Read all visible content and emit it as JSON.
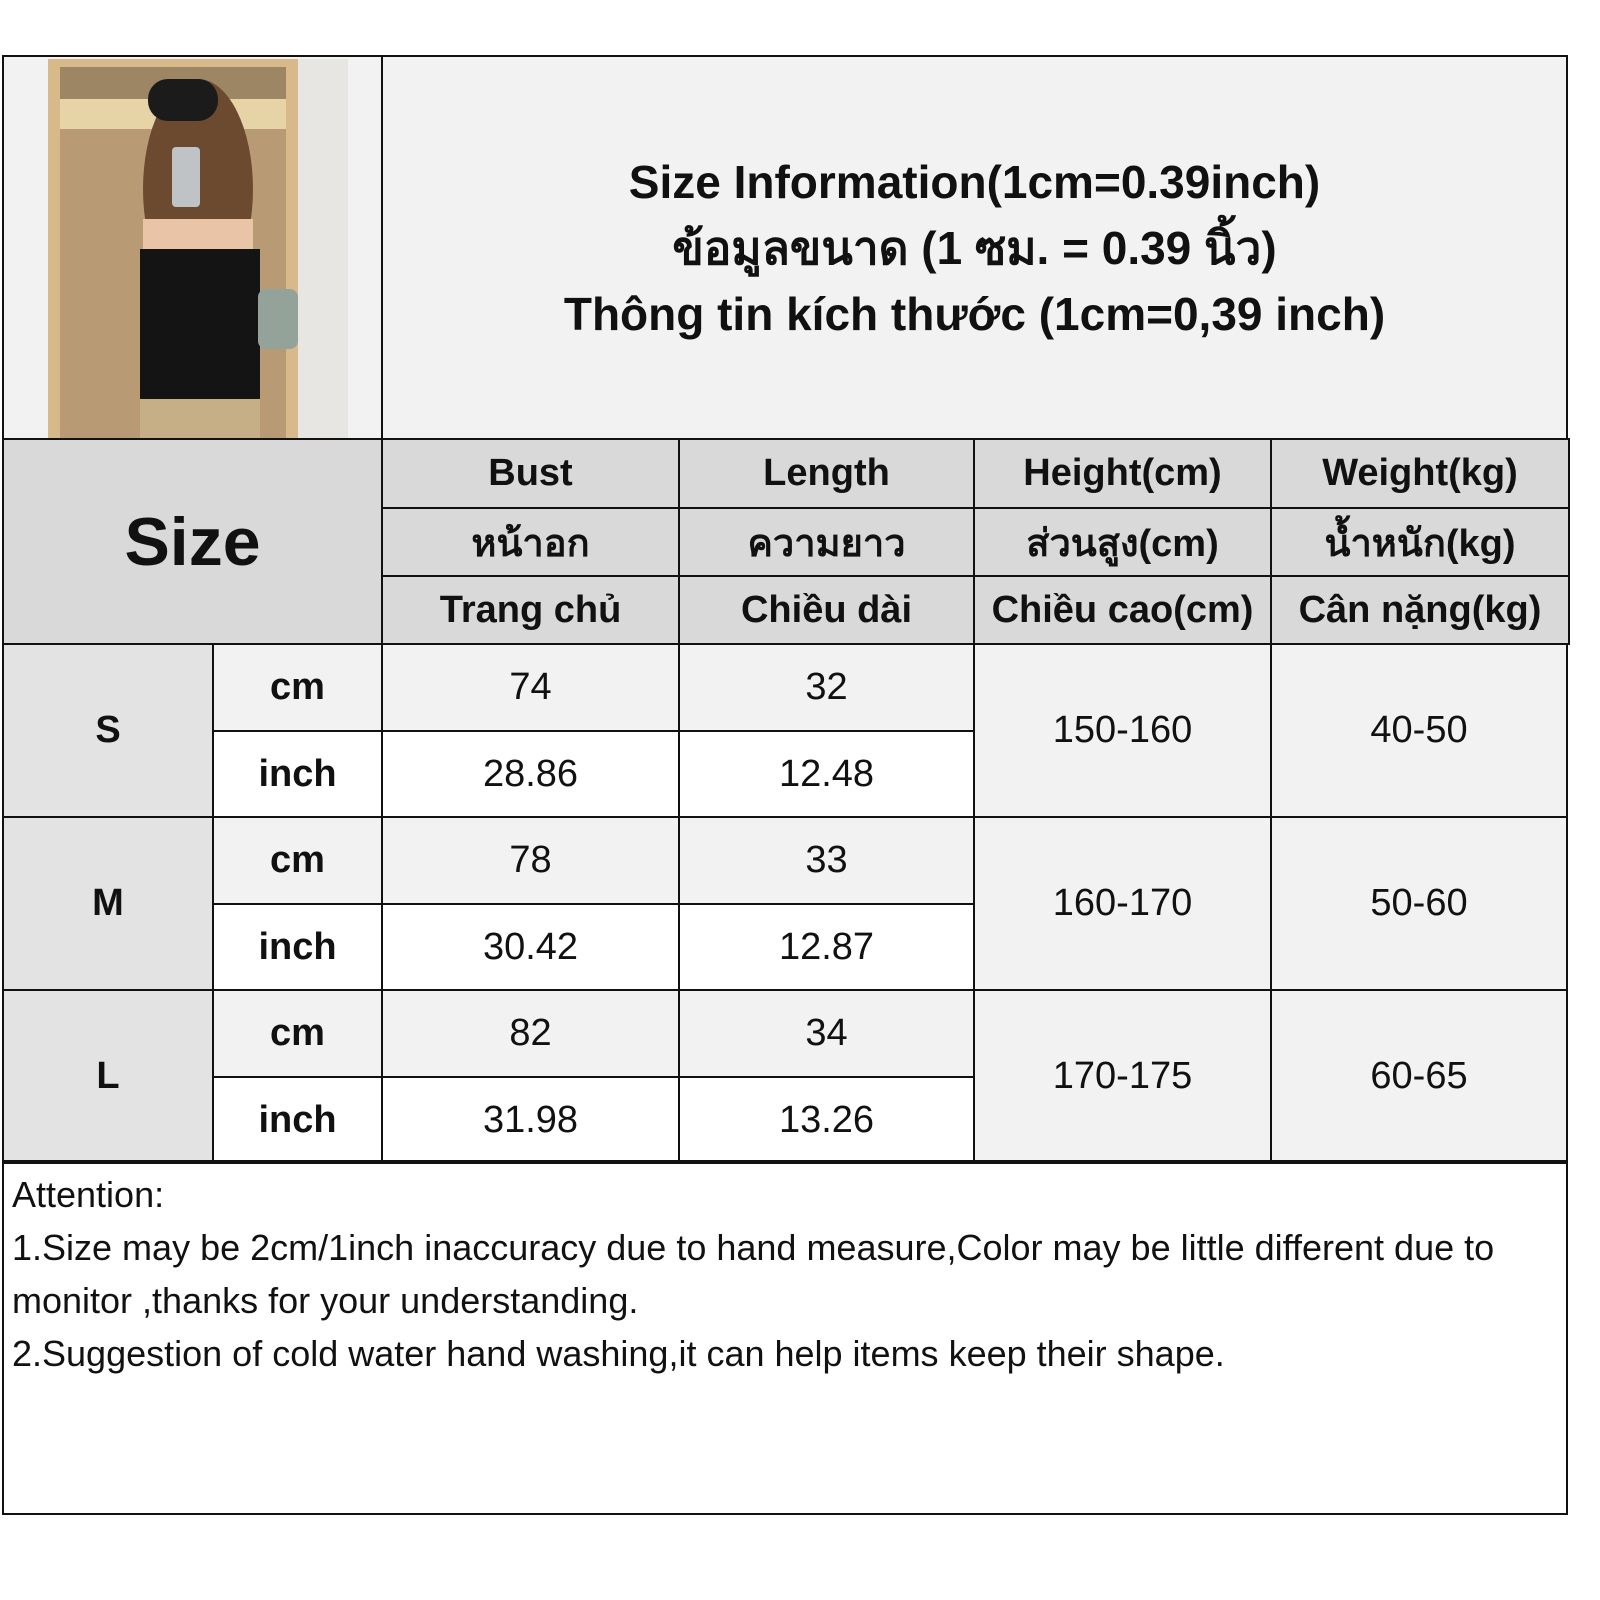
{
  "title": {
    "line1": "Size Information(1cm=0.39inch)",
    "line2": "ข้อมูลขนาด (1 ซม. = 0.39 นิ้ว)",
    "line3": "Thông tin kích thước (1cm=0,39 inch)"
  },
  "size_label": "Size",
  "headers": [
    {
      "en": "Bust",
      "th": "หน้าอก",
      "vi": "Trang chủ"
    },
    {
      "en": "Length",
      "th": "ความยาว",
      "vi": "Chiều dài"
    },
    {
      "en": "Height(cm)",
      "th": "ส่วนสูง(cm)",
      "vi": "Chiều cao(cm)"
    },
    {
      "en": "Weight(kg)",
      "th": "น้ำหนัก(kg)",
      "vi": "Cân nặng(kg)"
    }
  ],
  "rows": [
    {
      "size": "S",
      "cm": {
        "unit": "cm",
        "bust": "74",
        "length": "32"
      },
      "inch": {
        "unit": "inch",
        "bust": "28.86",
        "length": "12.48"
      },
      "height": "150-160",
      "weight": "40-50"
    },
    {
      "size": "M",
      "cm": {
        "unit": "cm",
        "bust": "78",
        "length": "33"
      },
      "inch": {
        "unit": "inch",
        "bust": "30.42",
        "length": "12.87"
      },
      "height": "160-170",
      "weight": "50-60"
    },
    {
      "size": "L",
      "cm": {
        "unit": "cm",
        "bust": "82",
        "length": "34"
      },
      "inch": {
        "unit": "inch",
        "bust": "31.98",
        "length": "13.26"
      },
      "height": "170-175",
      "weight": "60-65"
    }
  ],
  "notes": [
    "Attention:",
    "1.Size may be 2cm/1inch inaccuracy due to hand measure,Color may be little different due to monitor ,thanks for your understanding.",
    "2.Suggestion of cold water hand washing,it can help items keep their shape."
  ]
}
